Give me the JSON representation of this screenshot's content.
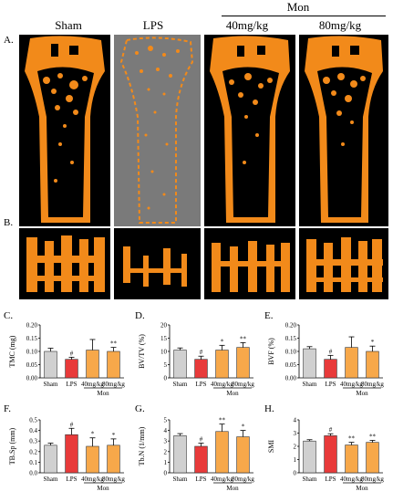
{
  "header": {
    "group_label": "Mon",
    "columns": [
      "Sham",
      "LPS",
      "40mg/kg",
      "80mg/kg"
    ]
  },
  "panels": {
    "A": "A.",
    "B": "B.",
    "C": "C.",
    "D": "D.",
    "E": "E.",
    "F": "F.",
    "G": "G.",
    "H": "H."
  },
  "colors": {
    "bone": "#f28a1a",
    "sham_bar": "#d0d0d0",
    "lps_bar": "#e83a3a",
    "mon_bar": "#f7a84a",
    "image_background": "#000000",
    "lps_background": "#7a7a7a"
  },
  "chart_data": [
    {
      "type": "bar",
      "panel": "C.",
      "ylabel": "TMC (mg)",
      "categories": [
        "Sham",
        "LPS",
        "40mg/kg",
        "80mg/kg"
      ],
      "group_label": "Mon",
      "values": [
        0.1,
        0.07,
        0.105,
        0.1
      ],
      "errors": [
        0.012,
        0.008,
        0.04,
        0.015
      ],
      "marks": [
        "",
        "#",
        "",
        "**"
      ],
      "ylim": [
        0,
        0.2
      ],
      "yticks": [
        "0.00",
        "0.05",
        "0.10",
        "0.15",
        "0.20"
      ]
    },
    {
      "type": "bar",
      "panel": "D.",
      "ylabel": "BV/TV (%)",
      "categories": [
        "Sham",
        "LPS",
        "40mg/kg",
        "80mg/kg"
      ],
      "group_label": "Mon",
      "values": [
        10.5,
        7,
        10.5,
        11.5
      ],
      "errors": [
        0.8,
        1.2,
        1.8,
        1.8
      ],
      "marks": [
        "",
        "#",
        "*",
        "**"
      ],
      "ylim": [
        0,
        20
      ],
      "yticks": [
        "0",
        "5",
        "10",
        "15",
        "20"
      ]
    },
    {
      "type": "bar",
      "panel": "E.",
      "ylabel": "BVF (%)",
      "categories": [
        "Sham",
        "LPS",
        "40mg/kg",
        "80mg/kg"
      ],
      "group_label": "Mon",
      "values": [
        0.11,
        0.07,
        0.115,
        0.1
      ],
      "errors": [
        0.008,
        0.015,
        0.04,
        0.02
      ],
      "marks": [
        "",
        "#",
        "",
        "*"
      ],
      "ylim": [
        0,
        0.2
      ],
      "yticks": [
        "0.00",
        "0.05",
        "0.10",
        "0.15",
        "0.20"
      ]
    },
    {
      "type": "bar",
      "panel": "F.",
      "ylabel": "TB.Sp (mm)",
      "categories": [
        "Sham",
        "LPS",
        "40mg/kg",
        "80mg/kg"
      ],
      "group_label": "Mon",
      "values": [
        0.26,
        0.36,
        0.25,
        0.26
      ],
      "errors": [
        0.02,
        0.06,
        0.08,
        0.06
      ],
      "marks": [
        "",
        "#",
        "*",
        "*"
      ],
      "ylim": [
        0,
        0.5
      ],
      "yticks": [
        "0.0",
        "0.1",
        "0.2",
        "0.3",
        "0.4",
        "0.5"
      ]
    },
    {
      "type": "bar",
      "panel": "G.",
      "ylabel": "Tb.N (1/mm)",
      "categories": [
        "Sham",
        "LPS",
        "40mg/kg",
        "80mg/kg"
      ],
      "group_label": "Mon",
      "values": [
        3.5,
        2.5,
        3.9,
        3.4
      ],
      "errors": [
        0.2,
        0.3,
        0.7,
        0.6
      ],
      "marks": [
        "",
        "#",
        "**",
        "*"
      ],
      "ylim": [
        0,
        5
      ],
      "yticks": [
        "0",
        "1",
        "2",
        "3",
        "4",
        "5"
      ]
    },
    {
      "type": "bar",
      "panel": "H.",
      "ylabel": "SMI",
      "categories": [
        "Sham",
        "LPS",
        "40mg/kg",
        "80mg/kg"
      ],
      "group_label": "Mon",
      "values": [
        2.4,
        2.8,
        2.1,
        2.3
      ],
      "errors": [
        0.1,
        0.15,
        0.2,
        0.15
      ],
      "marks": [
        "",
        "#",
        "**",
        "**"
      ],
      "ylim": [
        0,
        4
      ],
      "yticks": [
        "0",
        "1",
        "2",
        "3",
        "4"
      ]
    }
  ]
}
